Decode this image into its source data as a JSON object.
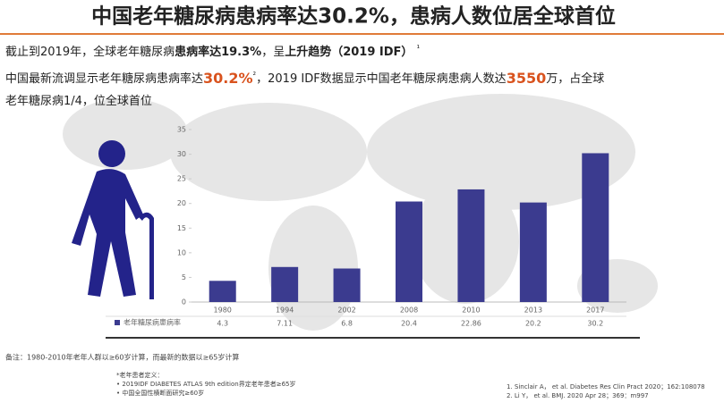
{
  "title": "中国老年糖尿病患病率达30.2%，患病人数位居全球首位",
  "lines": [
    [
      "截止到2019年，全球老年糖尿病",
      "患病率达19.3%",
      "，呈",
      "上升趋势（2019 IDF）",
      "¹"
    ],
    [
      "中国最新流调显示老年糖尿病患病率达",
      "30.2%",
      "²",
      "，2019 IDF数据显示中国老年糖尿病患病人数达",
      "3550",
      "万，占全球"
    ],
    [
      "老年糖尿病1/4，位全球首位"
    ]
  ],
  "chart_data": {
    "type": "bar",
    "categories": [
      "1980",
      "1994",
      "2002",
      "2008",
      "2010",
      "2013",
      "2017"
    ],
    "series": [
      {
        "name": "老年糖尿病患病率",
        "color": "#3b3b8f",
        "values": [
          4.3,
          7.11,
          6.8,
          20.4,
          22.86,
          20.2,
          30.2
        ]
      }
    ],
    "ylim": [
      0,
      35
    ],
    "yticks": [
      0,
      5,
      10,
      15,
      20,
      25,
      30,
      35
    ],
    "grid": false
  },
  "note": "备注：1980-2010年老年人群以≥60岁计算，而最新的数据以≥65岁计算",
  "definition": {
    "title": "*老年患者定义：",
    "items": [
      "2019IDF DIABETES ATLAS 9th edition界定老年患者≥65岁",
      "中国全国性横断面研究≥60岁"
    ]
  },
  "references": [
    "1.    Sinclair A，  et al.  Diabetes Res Clin Pract  2020；162:108078",
    "2.    Li Y，  et al. BMJ. 2020 Apr 28；369：m997"
  ]
}
